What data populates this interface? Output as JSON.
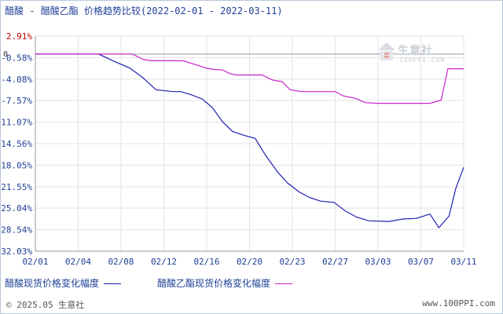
{
  "title": {
    "product_a": "醋酸",
    "separator": "-",
    "rest": "醋酸乙酯 价格趋势比较(2022-02-01 - 2022-03-11)"
  },
  "watermark": {
    "brand": "生意社",
    "url": "100PPI.COM"
  },
  "legend": [
    {
      "label": "醋酸现货价格变化幅度",
      "color": "#1f1fb4"
    },
    {
      "label": "醋酸乙酯现货价格变化幅度",
      "color": "#cc22cc"
    }
  ],
  "footer": {
    "left": "© 2025.05 生意社",
    "right": "www.100PPI.com"
  },
  "colors": {
    "axis": "#999999",
    "grid": "#e3e3e3",
    "tick_text": "#1d3f96",
    "top_tick": "#cc0000",
    "zero_label": "#333333"
  },
  "chart_data": {
    "type": "line",
    "ylim": [
      -32.03,
      2.91
    ],
    "y_ticks": [
      "2.91%",
      "-0.58%",
      "-4.08%",
      "-7.57%",
      "-11.07%",
      "-14.56%",
      "-18.05%",
      "-21.55%",
      "-25.04%",
      "-28.54%",
      "-32.03%"
    ],
    "y_tick_values": [
      2.91,
      -0.58,
      -4.08,
      -7.57,
      -11.07,
      -14.56,
      -18.05,
      -21.55,
      -25.04,
      -28.54,
      -32.03
    ],
    "zero_label": "0",
    "xlim": [
      0,
      38
    ],
    "x_ticks": [
      "02/01",
      "02/04",
      "02/08",
      "02/12",
      "02/16",
      "02/20",
      "02/23",
      "02/27",
      "03/03",
      "03/07",
      "03/11"
    ],
    "x_tick_pos": [
      0,
      3.8,
      7.6,
      11.4,
      15.2,
      19,
      22.8,
      26.6,
      30.4,
      34.2,
      38
    ],
    "series": [
      {
        "name": "醋酸现货价格变化幅度",
        "color": "#1f1fb4",
        "points": [
          [
            0,
            0
          ],
          [
            5.6,
            0
          ],
          [
            7,
            -1.2
          ],
          [
            8.4,
            -2.3
          ],
          [
            9.5,
            -3.8
          ],
          [
            10.7,
            -5.8
          ],
          [
            12.2,
            -6.1
          ],
          [
            12.9,
            -6.1
          ],
          [
            13.8,
            -6.6
          ],
          [
            14.8,
            -7.3
          ],
          [
            15.7,
            -8.7
          ],
          [
            16.6,
            -11.0
          ],
          [
            17.5,
            -12.6
          ],
          [
            18.5,
            -13.2
          ],
          [
            19.5,
            -13.7
          ],
          [
            20.4,
            -16.4
          ],
          [
            21.5,
            -19.2
          ],
          [
            22.4,
            -21.0
          ],
          [
            23.4,
            -22.4
          ],
          [
            24.3,
            -23.3
          ],
          [
            25.3,
            -23.9
          ],
          [
            26.5,
            -24.1
          ],
          [
            27.5,
            -25.5
          ],
          [
            28.5,
            -26.5
          ],
          [
            29.6,
            -27.1
          ],
          [
            31.4,
            -27.2
          ],
          [
            32.6,
            -26.8
          ],
          [
            33.8,
            -26.7
          ],
          [
            35.0,
            -26.0
          ],
          [
            35.8,
            -28.2
          ],
          [
            36.7,
            -26.3
          ],
          [
            37.3,
            -21.8
          ],
          [
            38,
            -18.4
          ]
        ]
      },
      {
        "name": "醋酸乙酯现货价格变化幅度",
        "color": "#cc22cc",
        "points": [
          [
            0,
            0
          ],
          [
            8.6,
            0
          ],
          [
            9.6,
            -0.9
          ],
          [
            10.3,
            -1.1
          ],
          [
            13.1,
            -1.1
          ],
          [
            14.0,
            -1.6
          ],
          [
            15.2,
            -2.3
          ],
          [
            15.8,
            -2.5
          ],
          [
            16.6,
            -2.6
          ],
          [
            17.3,
            -3.2
          ],
          [
            17.8,
            -3.4
          ],
          [
            19.2,
            -3.4
          ],
          [
            20.1,
            -3.4
          ],
          [
            21.0,
            -4.2
          ],
          [
            21.9,
            -4.5
          ],
          [
            22.6,
            -5.8
          ],
          [
            23.6,
            -6.1
          ],
          [
            26.6,
            -6.1
          ],
          [
            27.3,
            -6.8
          ],
          [
            28.4,
            -7.2
          ],
          [
            29.3,
            -7.9
          ],
          [
            30.4,
            -8.0
          ],
          [
            34.2,
            -8.0
          ],
          [
            35.0,
            -8.0
          ],
          [
            36.0,
            -7.5
          ],
          [
            36.6,
            -2.4
          ],
          [
            38,
            -2.4
          ]
        ]
      }
    ]
  }
}
